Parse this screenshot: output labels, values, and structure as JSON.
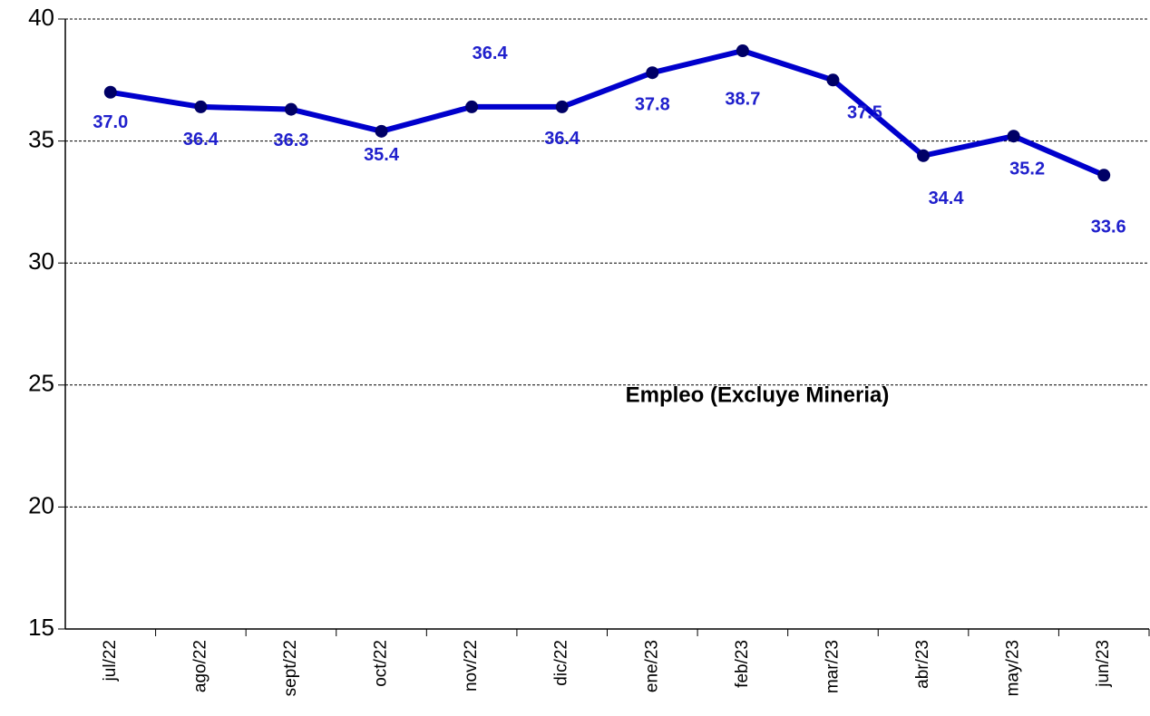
{
  "chart_data": {
    "type": "line",
    "annotation": "Empleo (Excluye Mineria)",
    "categories": [
      "jul/22",
      "ago/22",
      "sept/22",
      "oct/22",
      "nov/22",
      "dic/22",
      "ene/23",
      "feb/23",
      "mar/23",
      "abr/23",
      "may/23",
      "jun/23"
    ],
    "series": [
      {
        "color": "#0000cc",
        "values": [
          37.0,
          36.4,
          36.3,
          35.4,
          36.4,
          36.4,
          37.8,
          38.7,
          37.5,
          34.4,
          35.2,
          33.6
        ],
        "value_labels": [
          "37.0",
          "36.4",
          "36.3",
          "35.4",
          "36.4",
          "36.4",
          "37.8",
          "38.7",
          "37.5",
          "34.4",
          "35.2",
          "33.6"
        ]
      }
    ],
    "ylim": [
      15,
      40
    ],
    "yticks": [
      15,
      20,
      25,
      30,
      35,
      40
    ],
    "grid": true
  }
}
